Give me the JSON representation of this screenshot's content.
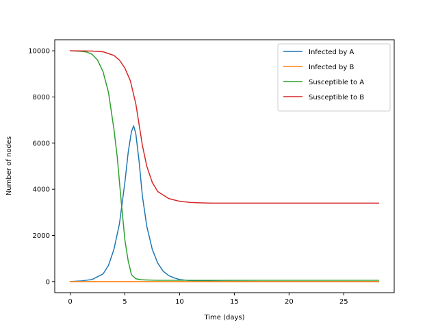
{
  "chart_data": {
    "type": "line",
    "title": "",
    "xlabel": "Time (days)",
    "ylabel": "Number of nodes",
    "xlim": [
      -1.41,
      29.61
    ],
    "ylim": [
      -480,
      10480
    ],
    "xticks": [
      0,
      5,
      10,
      15,
      20,
      25
    ],
    "yticks": [
      0,
      2000,
      4000,
      6000,
      8000,
      10000
    ],
    "grid": false,
    "legend_position": "top-right",
    "series": [
      {
        "name": "Infected by A",
        "color": "#1f77b4",
        "x": [
          0,
          1,
          2,
          3,
          3.5,
          4,
          4.5,
          5,
          5.3,
          5.6,
          5.8,
          6,
          6.3,
          6.6,
          7,
          7.5,
          8,
          8.5,
          9,
          9.5,
          10,
          11,
          12,
          14,
          16,
          20,
          24,
          28.2
        ],
        "y": [
          0,
          30,
          90,
          330,
          700,
          1400,
          2500,
          4300,
          5600,
          6500,
          6750,
          6400,
          5200,
          3700,
          2400,
          1400,
          800,
          450,
          260,
          160,
          90,
          40,
          20,
          10,
          5,
          2,
          1,
          0
        ]
      },
      {
        "name": "Infected by B",
        "color": "#ff7f0e",
        "x": [
          0,
          5,
          10,
          15,
          20,
          25,
          28.2
        ],
        "y": [
          0,
          0,
          0,
          0,
          0,
          0,
          0
        ]
      },
      {
        "name": "Susceptible to A",
        "color": "#2ca02c",
        "x": [
          0,
          1,
          1.5,
          2,
          2.5,
          3,
          3.5,
          4,
          4.3,
          4.6,
          5,
          5.3,
          5.6,
          6,
          6.5,
          7,
          8,
          10,
          15,
          20,
          28.2
        ],
        "y": [
          10000,
          9980,
          9950,
          9850,
          9600,
          9100,
          8200,
          6600,
          5400,
          3800,
          1800,
          900,
          300,
          120,
          80,
          70,
          60,
          60,
          60,
          60,
          60
        ]
      },
      {
        "name": "Susceptible to B",
        "color": "#d62728",
        "x": [
          0,
          2,
          3,
          4,
          4.5,
          5,
          5.5,
          6,
          6.3,
          6.6,
          7,
          7.5,
          8,
          9,
          10,
          11,
          12,
          13,
          15,
          20,
          28.2
        ],
        "y": [
          10000,
          9990,
          9960,
          9800,
          9600,
          9250,
          8700,
          7700,
          6800,
          5900,
          5000,
          4300,
          3900,
          3600,
          3480,
          3430,
          3410,
          3400,
          3400,
          3400,
          3400
        ]
      }
    ]
  }
}
